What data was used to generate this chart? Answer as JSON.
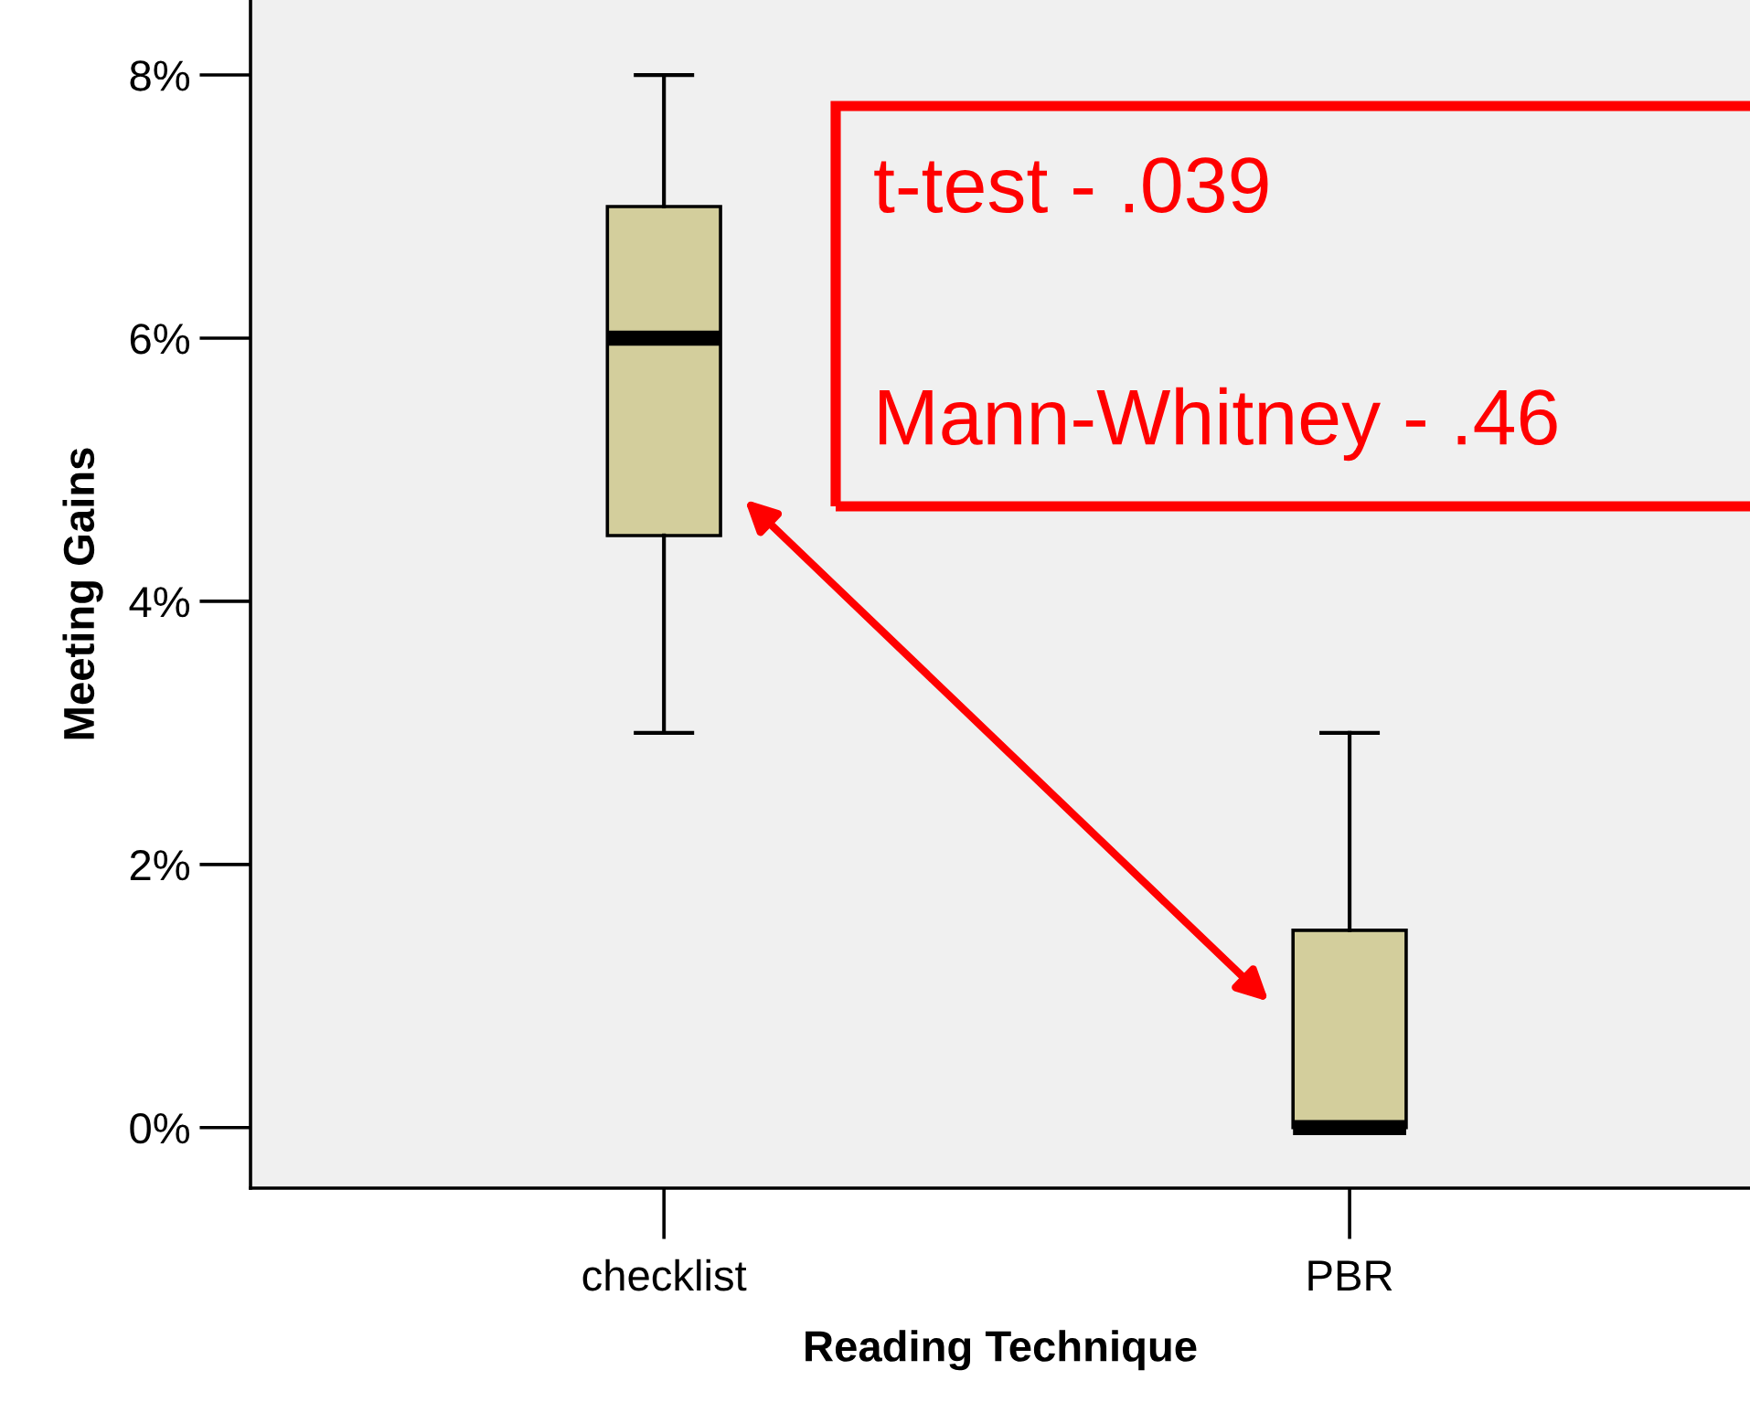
{
  "chart_data": {
    "type": "box",
    "xlabel": "Reading Technique",
    "ylabel": "Meeting Gains",
    "categories": [
      "checklist",
      "PBR"
    ],
    "boxes": [
      {
        "low": 3,
        "q1": 4.5,
        "median": 6,
        "q3": 7,
        "high": 8
      },
      {
        "low": 0,
        "q1": 0,
        "median": 0,
        "q3": 1.5,
        "high": 3
      }
    ],
    "color": "#d3ce9c",
    "ylim": [
      -0.46,
      8.57
    ],
    "yticks": [
      {
        "value": 0,
        "label": "0%"
      },
      {
        "value": 2,
        "label": "2%"
      },
      {
        "value": 4,
        "label": "4%"
      },
      {
        "value": 6,
        "label": "6%"
      },
      {
        "value": 8,
        "label": "8%"
      }
    ],
    "grid": false,
    "annotations": [
      "t-test - .039",
      "Mann-Whitney - .46"
    ]
  }
}
